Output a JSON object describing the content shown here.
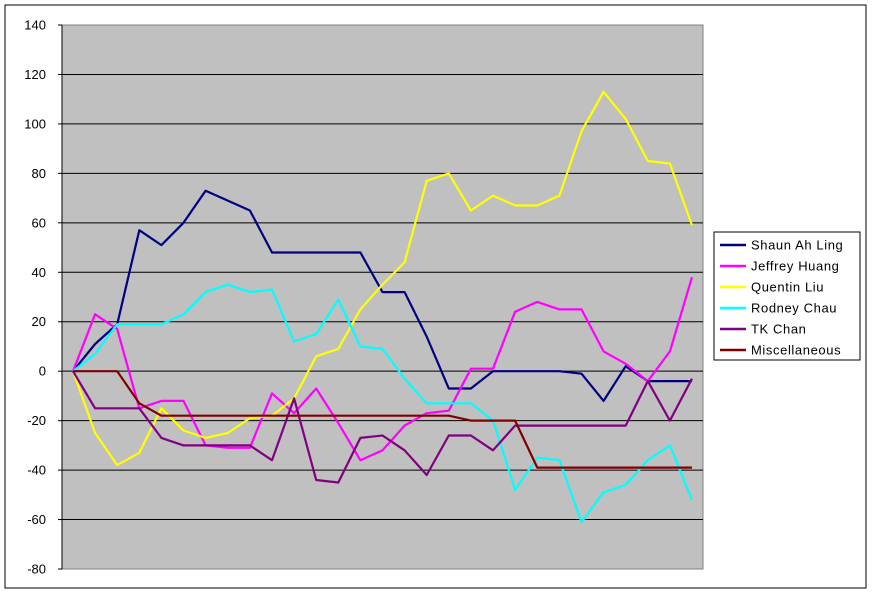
{
  "chart_data": {
    "type": "line",
    "title": "",
    "xlabel": "",
    "ylabel": "",
    "ylim": [
      -80,
      140
    ],
    "yticks": [
      -80,
      -60,
      -40,
      -20,
      0,
      20,
      40,
      60,
      80,
      100,
      120,
      140
    ],
    "x_count": 29,
    "grid": "horizontal",
    "plot_background": "#C0C0C0",
    "legend_position": "right",
    "series": [
      {
        "name": "Shaun Ah Ling",
        "color": "#000080",
        "values": [
          0,
          11,
          19,
          57,
          51,
          60,
          73,
          69,
          65,
          48,
          48,
          48,
          48,
          48,
          32,
          32,
          14,
          -7,
          -7,
          0,
          0,
          0,
          0,
          -1,
          -12,
          2,
          -4,
          -4,
          -4
        ]
      },
      {
        "name": "Jeffrey Huang",
        "color": "#FF00FF",
        "values": [
          0,
          23,
          17,
          -15,
          -12,
          -12,
          -30,
          -31,
          -31,
          -9,
          -17,
          -7,
          -21,
          -36,
          -32,
          -22,
          -17,
          -16,
          1,
          1,
          24,
          28,
          25,
          25,
          8,
          3,
          -4,
          8,
          38
        ]
      },
      {
        "name": "Quentin Liu",
        "color": "#FFFF00",
        "values": [
          0,
          -25,
          -38,
          -33,
          -15,
          -24,
          -27,
          -25,
          -19,
          -18,
          -11,
          6,
          9,
          25,
          35,
          44,
          77,
          80,
          65,
          71,
          67,
          67,
          71,
          97,
          113,
          102,
          85,
          84,
          59
        ]
      },
      {
        "name": "Rodney Chau",
        "color": "#00FFFF",
        "values": [
          0,
          7,
          19,
          19,
          19,
          23,
          32,
          35,
          32,
          33,
          12,
          15,
          29,
          10,
          9,
          -3,
          -13,
          -13,
          -13,
          -20,
          -48,
          -35,
          -36,
          -61,
          -49,
          -46,
          -36,
          -30,
          -52
        ]
      },
      {
        "name": "TK Chan",
        "color": "#800080",
        "values": [
          0,
          -15,
          -15,
          -15,
          -27,
          -30,
          -30,
          -30,
          -30,
          -36,
          -11,
          -44,
          -45,
          -27,
          -26,
          -32,
          -42,
          -26,
          -26,
          -32,
          -22,
          -22,
          -22,
          -22,
          -22,
          -22,
          -4,
          -20,
          -3
        ]
      },
      {
        "name": "Miscellaneous",
        "color": "#800000",
        "values": [
          0,
          0,
          0,
          -13,
          -18,
          -18,
          -18,
          -18,
          -18,
          -18,
          -18,
          -18,
          -18,
          -18,
          -18,
          -18,
          -18,
          -18,
          -20,
          -20,
          -20,
          -39,
          -39,
          -39,
          -39,
          -39,
          -39,
          -39,
          -39
        ]
      }
    ]
  }
}
